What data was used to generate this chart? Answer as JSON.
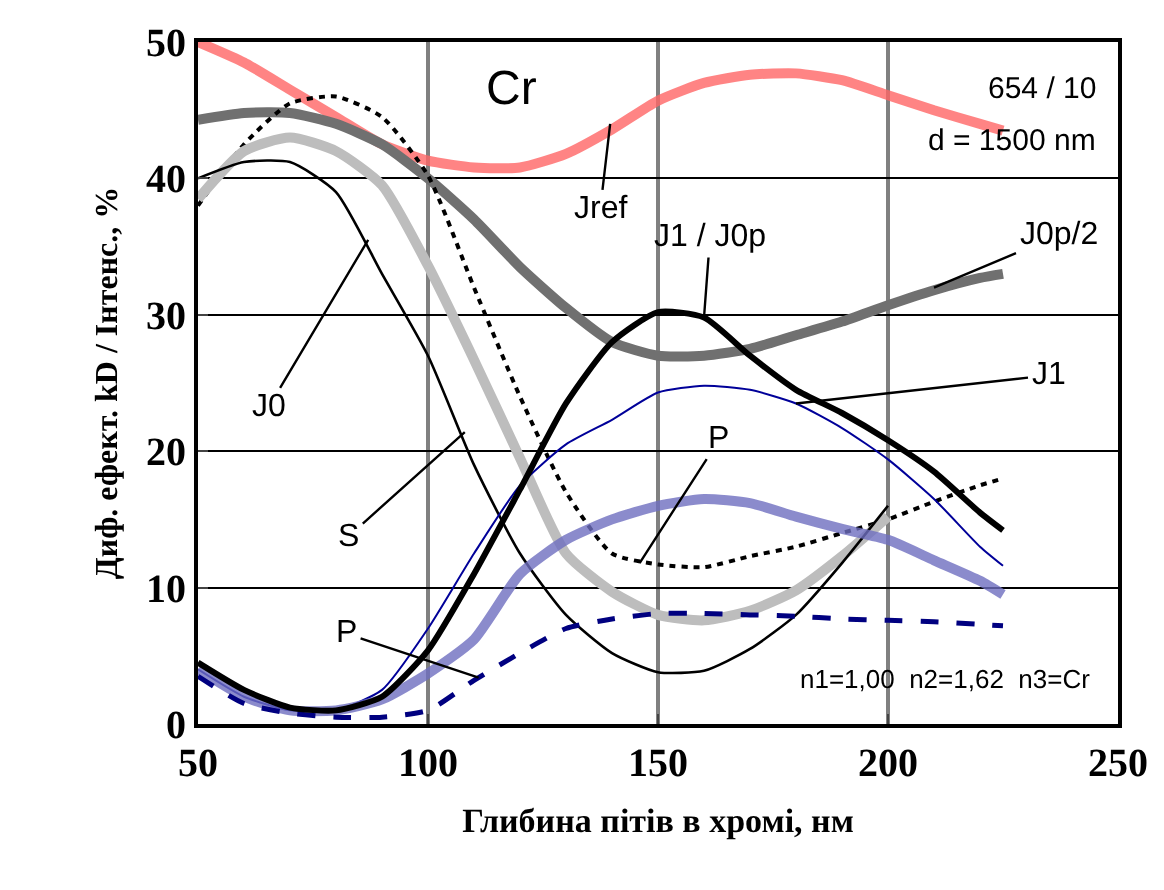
{
  "chart_data": {
    "type": "line",
    "xlabel": "Глибина пітів в хромі, нм",
    "ylabel": "Диф. ефект. kD / Інтенс., %",
    "x": [
      50,
      60,
      70,
      80,
      90,
      100,
      110,
      120,
      130,
      140,
      150,
      160,
      170,
      180,
      190,
      200,
      210,
      220,
      225
    ],
    "xlim": [
      50,
      250
    ],
    "xticks": [
      50,
      100,
      150,
      200,
      250
    ],
    "ylim": [
      0,
      50
    ],
    "yticks": [
      0,
      10,
      20,
      30,
      40,
      50
    ],
    "grid": true,
    "line_style": "solid",
    "series": [
      {
        "color": "#ff6666",
        "values": [
          50,
          48.5,
          46.5,
          44.5,
          42.5,
          41.3,
          40.8,
          40.8,
          41.8,
          43.6,
          45.7,
          47,
          47.6,
          47.7,
          47.2,
          46.1,
          45,
          44,
          43.5
        ]
      },
      {
        "color": "#707070",
        "values": [
          44.3,
          44.8,
          44.8,
          44,
          42.5,
          40,
          37,
          33.5,
          30.5,
          28,
          27,
          27,
          27.5,
          28.5,
          29.5,
          30.7,
          31.8,
          32.7,
          33
        ]
      },
      {
        "color": "#000000",
        "line_style": "dotted",
        "values": [
          38,
          42.5,
          45.5,
          46,
          44.5,
          40.2,
          32,
          24,
          17,
          12.5,
          11.7,
          11.5,
          12.3,
          13,
          14,
          15,
          16.3,
          17.5,
          18
        ]
      },
      {
        "color": "#bdbdbd",
        "values": [
          38.5,
          42,
          43,
          42,
          39.5,
          33.6,
          26.7,
          19.5,
          12.5,
          9.7,
          8,
          7.6,
          8.3,
          9.8,
          12.3,
          15.2,
          null,
          null,
          null
        ]
      },
      {
        "color": "#000000",
        "values": [
          40,
          41.2,
          41.2,
          39,
          33,
          27,
          19,
          12.5,
          8,
          5.2,
          3.8,
          3.9,
          5.5,
          8,
          11.8,
          16,
          null,
          null,
          null
        ]
      },
      {
        "color": "#000099",
        "values": [
          4,
          2,
          1,
          1,
          2.5,
          7,
          12.5,
          17.5,
          20.5,
          22.3,
          24.3,
          24.8,
          24.5,
          23.5,
          21.7,
          19.4,
          16.5,
          13,
          11.6
        ]
      },
      {
        "color": "#6f6fc0",
        "values": [
          4,
          2,
          1,
          1,
          1.8,
          3.7,
          6.2,
          11,
          13.5,
          15,
          16,
          16.5,
          16.2,
          15.2,
          14.3,
          13.5,
          12,
          10.5,
          9.5
        ]
      },
      {
        "color": "#000080",
        "line_style": "dashed",
        "values": [
          3.5,
          1.5,
          0.8,
          0.5,
          0.5,
          1,
          3.2,
          5.2,
          7,
          7.7,
          8.1,
          8.1,
          8,
          7.9,
          7.7,
          7.6,
          7.5,
          7.3,
          7.2
        ]
      },
      {
        "color": "#000000",
        "values": [
          4.5,
          2.5,
          1.2,
          1,
          2,
          5.4,
          11,
          17.2,
          23.5,
          28,
          30.2,
          29.8,
          27,
          24.5,
          22.8,
          20.8,
          18.5,
          15.5,
          14.2
        ]
      }
    ],
    "annotations": [
      "Cr",
      "654 / 10",
      "d = 1500 nm",
      "n1=1,00  n2=1,62  n3=Cr",
      {
        "text": "Jref",
        "x": 139.6,
        "y": 44
      },
      {
        "text": "J1 / J0p",
        "x": 160,
        "y": 29.8
      },
      {
        "text": "J0p/2",
        "x": 210,
        "y": 32
      },
      {
        "text": "J0",
        "x": 87,
        "y": 35.5
      },
      {
        "text": "S",
        "x": 108,
        "y": 21.4
      },
      {
        "text": "P",
        "x": 111,
        "y": 3.4
      },
      {
        "text": "P",
        "x": 146,
        "y": 11.8
      },
      {
        "text": "J1",
        "x": 180,
        "y": 23.5
      }
    ]
  }
}
